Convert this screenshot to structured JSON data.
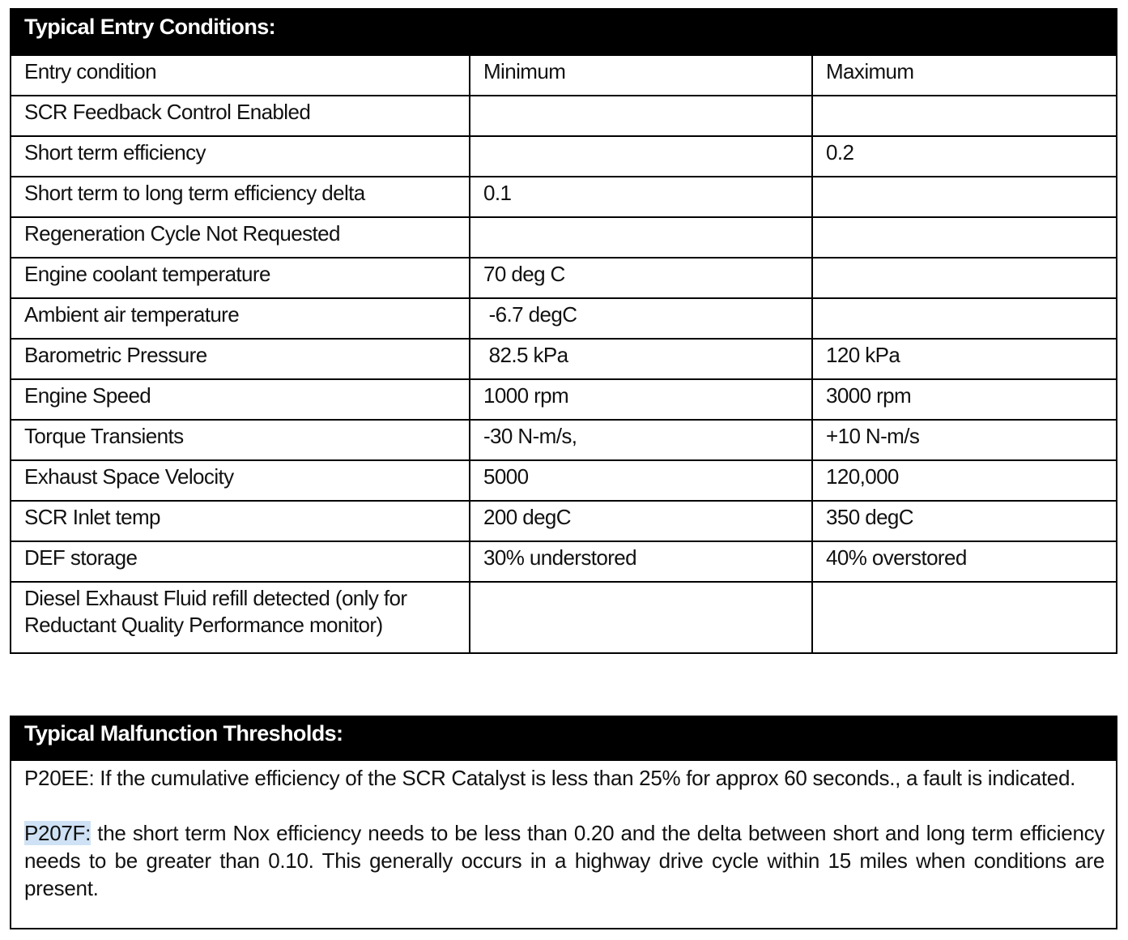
{
  "entry": {
    "title": "Typical Entry Conditions:",
    "columns": [
      "Entry condition",
      "Minimum",
      "Maximum"
    ],
    "rows": [
      [
        "SCR Feedback Control Enabled",
        "",
        ""
      ],
      [
        "Short term efficiency",
        "",
        "0.2"
      ],
      [
        "Short term to long term efficiency delta",
        "0.1",
        ""
      ],
      [
        "Regeneration Cycle Not Requested",
        "",
        ""
      ],
      [
        "Engine coolant temperature",
        "70 deg C",
        ""
      ],
      [
        "Ambient air temperature",
        " -6.7 degC",
        ""
      ],
      [
        "Barometric Pressure",
        " 82.5 kPa",
        "120 kPa"
      ],
      [
        "Engine Speed",
        "1000 rpm",
        "3000 rpm"
      ],
      [
        "Torque Transients",
        "-30 N-m/s,",
        "+10 N-m/s"
      ],
      [
        "Exhaust Space Velocity",
        "5000",
        "120,000"
      ],
      [
        "SCR Inlet temp",
        "200 degC",
        "350 degC"
      ],
      [
        "DEF storage",
        "30% understored",
        "40% overstored"
      ],
      [
        "Diesel Exhaust Fluid refill detected (only for Reductant Quality Performance monitor)",
        "",
        ""
      ]
    ]
  },
  "thresholds": {
    "title": "Typical Malfunction Thresholds:",
    "p1": "P20EE: If the cumulative efficiency of the SCR Catalyst is less than 25% for approx  60 seconds., a fault is indicated.",
    "p2_code": "P207F:",
    "p2_text": " the short term Nox efficiency needs to be less than 0.20 and the delta between short and long term efficiency needs to be greater than 0.10.  This generally occurs in a highway drive cycle within 15 miles when conditions are present.",
    "highlight_color": "#cfe2f5"
  }
}
